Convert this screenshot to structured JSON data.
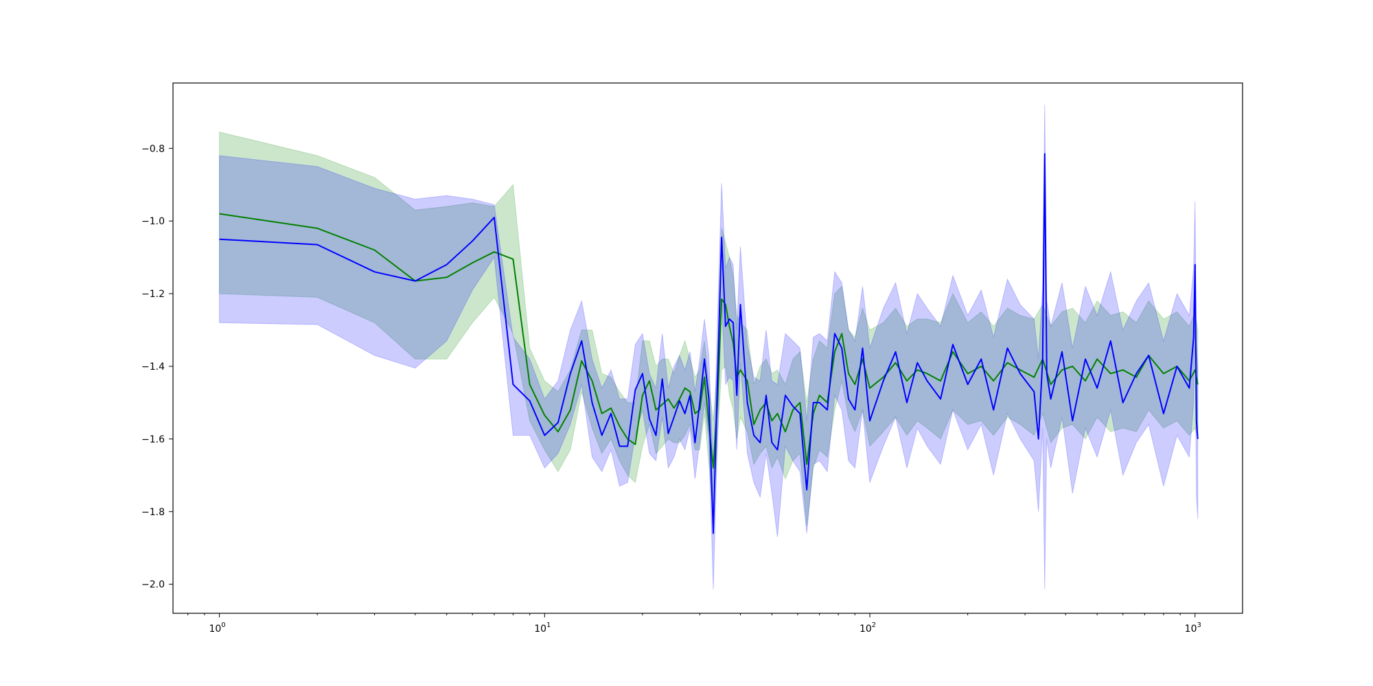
{
  "chart_data": {
    "type": "line",
    "title": "",
    "xlabel": "",
    "ylabel": "",
    "xscale": "log",
    "xlim": [
      0.72,
      1400
    ],
    "ylim": [
      -2.08,
      -0.62
    ],
    "grid": false,
    "legend": "none",
    "x_ticks": [
      {
        "value": 1,
        "base": "10",
        "exp": "0"
      },
      {
        "value": 10,
        "base": "10",
        "exp": "1"
      },
      {
        "value": 100,
        "base": "10",
        "exp": "2"
      },
      {
        "value": 1000,
        "base": "10",
        "exp": "3"
      }
    ],
    "y_ticks": [
      {
        "value": -0.8,
        "label": "−0.8"
      },
      {
        "value": -1.0,
        "label": "−1.0"
      },
      {
        "value": -1.2,
        "label": "−1.2"
      },
      {
        "value": -1.4,
        "label": "−1.4"
      },
      {
        "value": -1.6,
        "label": "−1.6"
      },
      {
        "value": -1.8,
        "label": "−1.8"
      },
      {
        "value": -2.0,
        "label": "−2.0"
      }
    ],
    "series": [
      {
        "color": "#008000",
        "band_color": "#008000",
        "band_opacity": 0.2,
        "x": [
          1,
          2,
          3,
          4,
          5,
          6,
          7,
          8,
          9,
          10,
          11,
          12,
          13,
          14,
          15,
          16,
          17,
          18,
          19,
          20,
          21,
          22,
          23,
          24,
          25,
          26,
          27,
          28,
          29,
          30,
          31,
          32,
          33,
          34,
          35,
          36,
          37,
          38,
          39,
          40,
          42,
          44,
          46,
          48,
          50,
          52,
          55,
          58,
          61,
          64,
          67,
          70,
          74,
          78,
          82,
          86,
          90,
          95,
          100,
          110,
          120,
          130,
          140,
          150,
          165,
          180,
          200,
          220,
          240,
          265,
          290,
          320,
          340,
          360,
          390,
          420,
          460,
          500,
          550,
          600,
          660,
          720,
          800,
          880,
          960,
          1000,
          1020
        ],
        "mean": [
          -0.98,
          -1.02,
          -1.08,
          -1.165,
          -1.155,
          -1.115,
          -1.085,
          -1.105,
          -1.45,
          -1.535,
          -1.58,
          -1.52,
          -1.385,
          -1.44,
          -1.53,
          -1.515,
          -1.565,
          -1.6,
          -1.615,
          -1.48,
          -1.44,
          -1.52,
          -1.505,
          -1.49,
          -1.515,
          -1.49,
          -1.46,
          -1.47,
          -1.53,
          -1.52,
          -1.43,
          -1.56,
          -1.68,
          -1.5,
          -1.215,
          -1.23,
          -1.29,
          -1.335,
          -1.43,
          -1.41,
          -1.44,
          -1.56,
          -1.52,
          -1.5,
          -1.55,
          -1.53,
          -1.58,
          -1.52,
          -1.5,
          -1.67,
          -1.53,
          -1.48,
          -1.5,
          -1.36,
          -1.31,
          -1.42,
          -1.45,
          -1.38,
          -1.46,
          -1.43,
          -1.39,
          -1.44,
          -1.41,
          -1.42,
          -1.44,
          -1.36,
          -1.42,
          -1.4,
          -1.44,
          -1.39,
          -1.41,
          -1.43,
          -1.38,
          -1.45,
          -1.41,
          -1.4,
          -1.44,
          -1.38,
          -1.42,
          -1.41,
          -1.43,
          -1.37,
          -1.42,
          -1.4,
          -1.44,
          -1.41,
          -1.45
        ],
        "band_upper": [
          -0.755,
          -0.82,
          -0.88,
          -0.97,
          -0.96,
          -0.95,
          -0.96,
          -0.9,
          -1.35,
          -1.44,
          -1.47,
          -1.41,
          -1.3,
          -1.3,
          -1.42,
          -1.43,
          -1.47,
          -1.5,
          -1.5,
          -1.33,
          -1.33,
          -1.4,
          -1.38,
          -1.38,
          -1.42,
          -1.37,
          -1.33,
          -1.38,
          -1.43,
          -1.41,
          -1.33,
          -1.45,
          -1.55,
          -1.4,
          -1.02,
          -1.06,
          -1.1,
          -1.15,
          -1.26,
          -1.28,
          -1.3,
          -1.45,
          -1.4,
          -1.38,
          -1.42,
          -1.41,
          -1.45,
          -1.38,
          -1.36,
          -1.5,
          -1.38,
          -1.33,
          -1.35,
          -1.2,
          -1.18,
          -1.3,
          -1.32,
          -1.24,
          -1.3,
          -1.28,
          -1.24,
          -1.29,
          -1.27,
          -1.27,
          -1.28,
          -1.2,
          -1.28,
          -1.25,
          -1.29,
          -1.24,
          -1.26,
          -1.27,
          -1.23,
          -1.29,
          -1.25,
          -1.24,
          -1.28,
          -1.22,
          -1.26,
          -1.25,
          -1.28,
          -1.22,
          -1.27,
          -1.25,
          -1.29,
          -1.25,
          -1.3
        ],
        "band_lower": [
          -1.2,
          -1.21,
          -1.28,
          -1.38,
          -1.38,
          -1.28,
          -1.21,
          -1.31,
          -1.55,
          -1.63,
          -1.69,
          -1.63,
          -1.47,
          -1.57,
          -1.64,
          -1.6,
          -1.66,
          -1.7,
          -1.72,
          -1.62,
          -1.56,
          -1.64,
          -1.62,
          -1.6,
          -1.61,
          -1.61,
          -1.59,
          -1.56,
          -1.63,
          -1.63,
          -1.53,
          -1.67,
          -1.82,
          -1.6,
          -1.41,
          -1.4,
          -1.48,
          -1.52,
          -1.6,
          -1.54,
          -1.58,
          -1.67,
          -1.64,
          -1.62,
          -1.68,
          -1.65,
          -1.71,
          -1.66,
          -1.64,
          -1.84,
          -1.68,
          -1.63,
          -1.65,
          -1.52,
          -1.44,
          -1.54,
          -1.58,
          -1.52,
          -1.62,
          -1.58,
          -1.54,
          -1.59,
          -1.55,
          -1.57,
          -1.6,
          -1.52,
          -1.56,
          -1.55,
          -1.59,
          -1.54,
          -1.56,
          -1.59,
          -1.53,
          -1.61,
          -1.57,
          -1.56,
          -1.6,
          -1.54,
          -1.58,
          -1.57,
          -1.58,
          -1.52,
          -1.57,
          -1.55,
          -1.59,
          -1.57,
          -1.6
        ]
      },
      {
        "color": "#0000ff",
        "band_color": "#0000ff",
        "band_opacity": 0.2,
        "x": [
          1,
          2,
          3,
          4,
          5,
          6,
          7,
          8,
          9,
          10,
          11,
          12,
          13,
          14,
          15,
          16,
          17,
          18,
          19,
          20,
          21,
          22,
          23,
          24,
          25,
          26,
          27,
          28,
          29,
          30,
          31,
          32,
          33,
          34,
          35,
          36,
          37,
          38,
          39,
          40,
          42,
          44,
          46,
          48,
          50,
          52,
          55,
          58,
          61,
          64,
          67,
          70,
          74,
          78,
          82,
          86,
          90,
          95,
          100,
          110,
          120,
          130,
          140,
          150,
          165,
          180,
          200,
          220,
          240,
          265,
          290,
          320,
          330,
          340,
          345,
          350,
          360,
          390,
          420,
          460,
          500,
          550,
          600,
          660,
          720,
          800,
          880,
          960,
          990,
          1000,
          1010,
          1020
        ],
        "mean": [
          -1.05,
          -1.065,
          -1.14,
          -1.165,
          -1.12,
          -1.055,
          -0.99,
          -1.45,
          -1.495,
          -1.59,
          -1.555,
          -1.42,
          -1.33,
          -1.5,
          -1.59,
          -1.53,
          -1.62,
          -1.62,
          -1.465,
          -1.42,
          -1.545,
          -1.59,
          -1.435,
          -1.585,
          -1.54,
          -1.495,
          -1.53,
          -1.48,
          -1.61,
          -1.5,
          -1.38,
          -1.49,
          -1.86,
          -1.44,
          -1.045,
          -1.29,
          -1.27,
          -1.28,
          -1.48,
          -1.23,
          -1.5,
          -1.59,
          -1.61,
          -1.48,
          -1.61,
          -1.63,
          -1.48,
          -1.51,
          -1.53,
          -1.74,
          -1.5,
          -1.5,
          -1.52,
          -1.31,
          -1.35,
          -1.49,
          -1.52,
          -1.35,
          -1.55,
          -1.44,
          -1.36,
          -1.5,
          -1.39,
          -1.44,
          -1.49,
          -1.34,
          -1.45,
          -1.38,
          -1.52,
          -1.35,
          -1.42,
          -1.47,
          -1.6,
          -1.38,
          -0.815,
          -1.42,
          -1.49,
          -1.36,
          -1.55,
          -1.38,
          -1.46,
          -1.33,
          -1.5,
          -1.42,
          -1.37,
          -1.53,
          -1.4,
          -1.46,
          -1.32,
          -1.12,
          -1.55,
          -1.6
        ],
        "band_upper": [
          -0.82,
          -0.85,
          -0.91,
          -0.94,
          -0.93,
          -0.94,
          -0.955,
          -1.32,
          -1.38,
          -1.49,
          -1.44,
          -1.3,
          -1.22,
          -1.38,
          -1.46,
          -1.41,
          -1.49,
          -1.49,
          -1.34,
          -1.31,
          -1.42,
          -1.46,
          -1.31,
          -1.46,
          -1.4,
          -1.37,
          -1.41,
          -1.36,
          -1.47,
          -1.38,
          -1.27,
          -1.37,
          -1.68,
          -1.28,
          -0.895,
          -1.13,
          -1.1,
          -1.12,
          -1.3,
          -1.07,
          -1.34,
          -1.43,
          -1.44,
          -1.3,
          -1.44,
          -1.45,
          -1.31,
          -1.33,
          -1.35,
          -1.55,
          -1.32,
          -1.31,
          -1.33,
          -1.14,
          -1.17,
          -1.3,
          -1.33,
          -1.18,
          -1.35,
          -1.24,
          -1.17,
          -1.31,
          -1.2,
          -1.24,
          -1.29,
          -1.15,
          -1.26,
          -1.19,
          -1.32,
          -1.16,
          -1.23,
          -1.27,
          -1.38,
          -1.18,
          -0.68,
          -1.22,
          -1.29,
          -1.17,
          -1.35,
          -1.18,
          -1.26,
          -1.14,
          -1.3,
          -1.22,
          -1.17,
          -1.33,
          -1.2,
          -1.26,
          -1.13,
          -0.945,
          -1.34,
          -1.4
        ],
        "band_lower": [
          -1.28,
          -1.285,
          -1.37,
          -1.405,
          -1.33,
          -1.19,
          -1.1,
          -1.59,
          -1.59,
          -1.68,
          -1.64,
          -1.56,
          -1.45,
          -1.65,
          -1.69,
          -1.63,
          -1.73,
          -1.72,
          -1.59,
          -1.52,
          -1.64,
          -1.66,
          -1.54,
          -1.68,
          -1.65,
          -1.6,
          -1.63,
          -1.57,
          -1.71,
          -1.61,
          -1.5,
          -1.6,
          -2.015,
          -1.6,
          -1.22,
          -1.45,
          -1.43,
          -1.44,
          -1.63,
          -1.39,
          -1.64,
          -1.72,
          -1.76,
          -1.64,
          -1.75,
          -1.87,
          -1.62,
          -1.66,
          -1.69,
          -1.86,
          -1.67,
          -1.66,
          -1.69,
          -1.48,
          -1.52,
          -1.66,
          -1.68,
          -1.52,
          -1.72,
          -1.62,
          -1.54,
          -1.68,
          -1.57,
          -1.62,
          -1.67,
          -1.52,
          -1.63,
          -1.56,
          -1.7,
          -1.53,
          -1.6,
          -1.66,
          -1.8,
          -1.57,
          -2.015,
          -1.6,
          -1.68,
          -1.54,
          -1.75,
          -1.57,
          -1.65,
          -1.52,
          -1.7,
          -1.61,
          -1.56,
          -1.73,
          -1.59,
          -1.65,
          -1.5,
          -1.3,
          -1.76,
          -1.82
        ]
      }
    ]
  }
}
